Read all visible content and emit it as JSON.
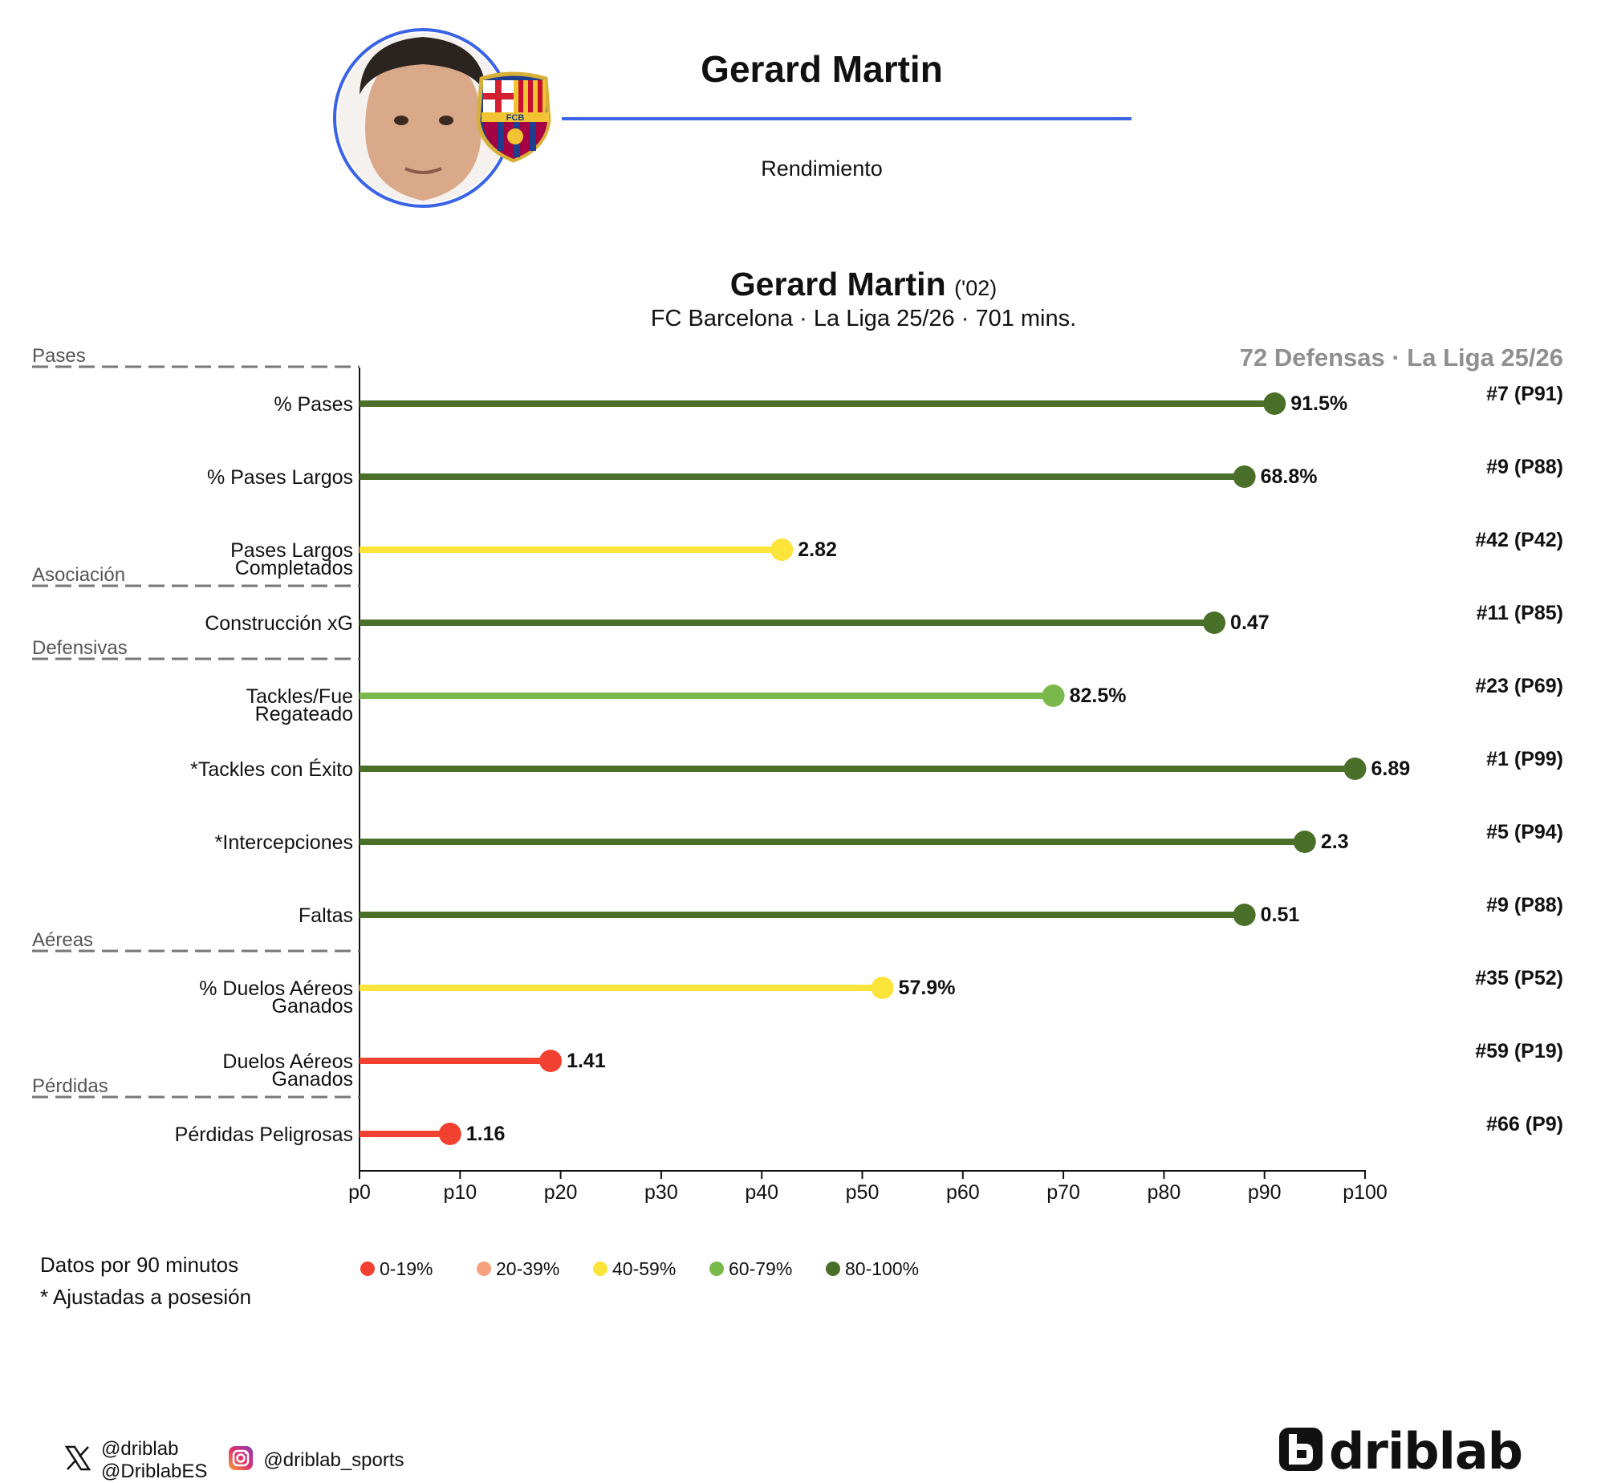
{
  "header": {
    "name": "Gerard Martin",
    "subtitle": "Rendimiento",
    "accent_color": "#3b63e6",
    "club_badge_letters": "FCB"
  },
  "chart_title": {
    "name": "Gerard Martin",
    "year": "('02)",
    "subtitle": "FC Barcelona · La Liga 25/26 · 701 mins.",
    "comparison": "72 Defensas · La Liga 25/26"
  },
  "chart_data": {
    "type": "lollipop",
    "x_ticks": [
      "p0",
      "p10",
      "p20",
      "p30",
      "p40",
      "p50",
      "p60",
      "p70",
      "p80",
      "p90",
      "p100"
    ],
    "xlim": [
      0,
      100
    ],
    "grid": false,
    "sections": [
      {
        "label": "Pases",
        "before_index": 0
      },
      {
        "label": "Asociación",
        "before_index": 3
      },
      {
        "label": "Defensivas",
        "before_index": 4
      },
      {
        "label": "Aéreas",
        "before_index": 8
      },
      {
        "label": "Pérdidas",
        "before_index": 10
      }
    ],
    "metrics": [
      {
        "label": [
          "% Pases"
        ],
        "percentile": 91,
        "value": "91.5%",
        "rank": "#7 (P91)",
        "color": "#4a6f28"
      },
      {
        "label": [
          "% Pases Largos"
        ],
        "percentile": 88,
        "value": "68.8%",
        "rank": "#9 (P88)",
        "color": "#4a6f28"
      },
      {
        "label": [
          "Pases Largos",
          "Completados"
        ],
        "percentile": 42,
        "value": "2.82",
        "rank": "#42 (P42)",
        "color": "#fce43a"
      },
      {
        "label": [
          "Construcción xG"
        ],
        "percentile": 85,
        "value": "0.47",
        "rank": "#11 (P85)",
        "color": "#4a6f28"
      },
      {
        "label": [
          "Tackles/Fue",
          "Regateado"
        ],
        "percentile": 69,
        "value": "82.5%",
        "rank": "#23 (P69)",
        "color": "#79b84a"
      },
      {
        "label": [
          "*Tackles con Éxito"
        ],
        "percentile": 99,
        "value": "6.89",
        "rank": "#1 (P99)",
        "color": "#4a6f28"
      },
      {
        "label": [
          "*Intercepciones"
        ],
        "percentile": 94,
        "value": "2.3",
        "rank": "#5 (P94)",
        "color": "#4a6f28"
      },
      {
        "label": [
          "Faltas"
        ],
        "percentile": 88,
        "value": "0.51",
        "rank": "#9 (P88)",
        "color": "#4a6f28"
      },
      {
        "label": [
          "% Duelos Aéreos",
          "Ganados"
        ],
        "percentile": 52,
        "value": "57.9%",
        "rank": "#35 (P52)",
        "color": "#fce43a"
      },
      {
        "label": [
          "Duelos Aéreos",
          "Ganados"
        ],
        "percentile": 19,
        "value": "1.41",
        "rank": "#59 (P19)",
        "color": "#f24130"
      },
      {
        "label": [
          "Pérdidas Peligrosas"
        ],
        "percentile": 9,
        "value": "1.16",
        "rank": "#66 (P9)",
        "color": "#f24130"
      }
    ],
    "legend": [
      {
        "label": "0-19%",
        "color": "#f24130"
      },
      {
        "label": "20-39%",
        "color": "#f7a07e"
      },
      {
        "label": "40-59%",
        "color": "#fce43a"
      },
      {
        "label": "60-79%",
        "color": "#79b84a"
      },
      {
        "label": "80-100%",
        "color": "#4a6f28"
      }
    ]
  },
  "notes": [
    "Datos por 90 minutos",
    "* Ajustadas a posesión"
  ],
  "footer": {
    "x_handle_1": "@driblab",
    "x_handle_2": "@DriblabES",
    "instagram_handle": "@driblab_sports",
    "brand": "driblab"
  }
}
